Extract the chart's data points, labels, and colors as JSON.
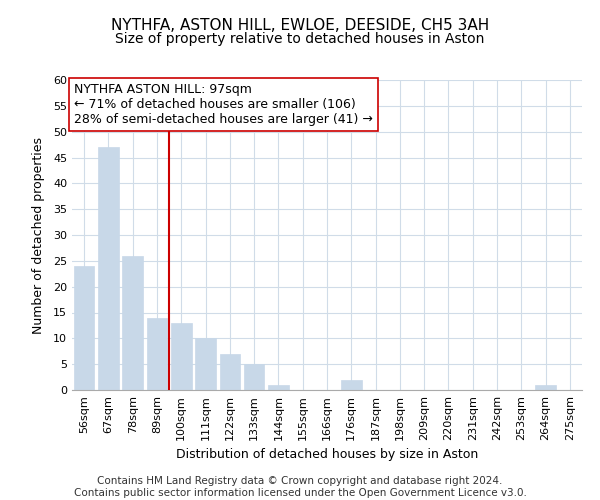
{
  "title": "NYTHFA, ASTON HILL, EWLOE, DEESIDE, CH5 3AH",
  "subtitle": "Size of property relative to detached houses in Aston",
  "xlabel": "Distribution of detached houses by size in Aston",
  "ylabel": "Number of detached properties",
  "categories": [
    "56sqm",
    "67sqm",
    "78sqm",
    "89sqm",
    "100sqm",
    "111sqm",
    "122sqm",
    "133sqm",
    "144sqm",
    "155sqm",
    "166sqm",
    "176sqm",
    "187sqm",
    "198sqm",
    "209sqm",
    "220sqm",
    "231sqm",
    "242sqm",
    "253sqm",
    "264sqm",
    "275sqm"
  ],
  "values": [
    24,
    47,
    26,
    14,
    13,
    10,
    7,
    5,
    1,
    0,
    0,
    2,
    0,
    0,
    0,
    0,
    0,
    0,
    0,
    1,
    0
  ],
  "bar_color": "#c8d8e8",
  "bar_edge_color": "#c8d8e8",
  "property_line_color": "#cc0000",
  "property_line_index": 3.5,
  "annotation_line1": "NYTHFA ASTON HILL: 97sqm",
  "annotation_line2": "← 71% of detached houses are smaller (106)",
  "annotation_line3": "28% of semi-detached houses are larger (41) →",
  "ylim": [
    0,
    60
  ],
  "yticks": [
    0,
    5,
    10,
    15,
    20,
    25,
    30,
    35,
    40,
    45,
    50,
    55,
    60
  ],
  "grid_color": "#d0dce8",
  "footer_line1": "Contains HM Land Registry data © Crown copyright and database right 2024.",
  "footer_line2": "Contains public sector information licensed under the Open Government Licence v3.0.",
  "title_fontsize": 11,
  "subtitle_fontsize": 10,
  "xlabel_fontsize": 9,
  "ylabel_fontsize": 9,
  "tick_fontsize": 8,
  "annotation_fontsize": 9,
  "footer_fontsize": 7.5
}
